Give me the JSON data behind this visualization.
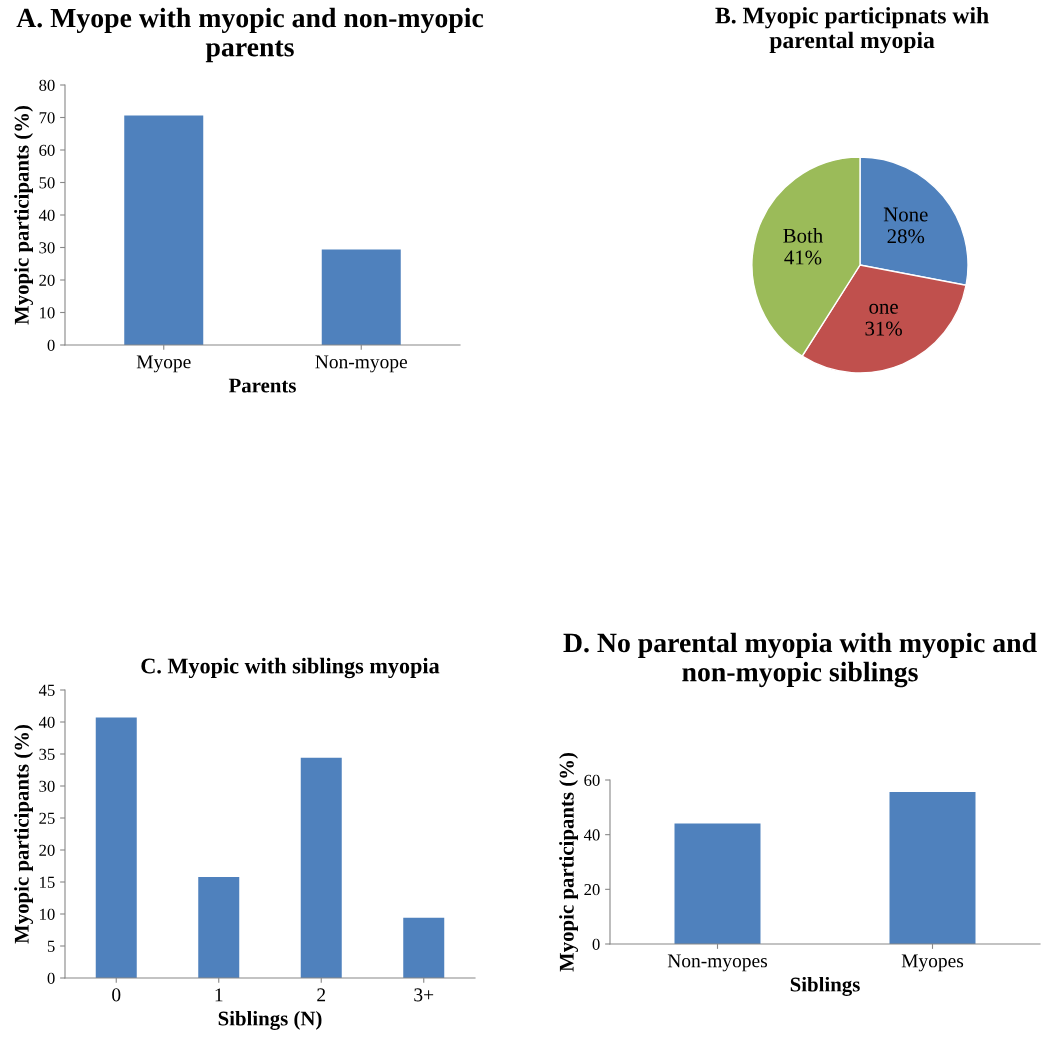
{
  "chart_data": [
    {
      "type": "bar",
      "title": "A. Myope with myopic and non-myopic parents",
      "xlabel": "Parents",
      "ylabel": "Myopic participants (%)",
      "categories": [
        "Myope",
        "Non-myope"
      ],
      "values": [
        70.6,
        29.4
      ],
      "color": "#4f81bd",
      "ylim": [
        0,
        80
      ],
      "yticks": [
        0,
        10,
        20,
        30,
        40,
        50,
        60,
        70,
        80
      ],
      "grid": false
    },
    {
      "type": "pie",
      "title": "B. Myopic participnats wih parental myopia",
      "categories": [
        "None",
        "one",
        "Both"
      ],
      "values": [
        28,
        31,
        41
      ],
      "value_labels": [
        "28%",
        "31%",
        "41%"
      ],
      "colors": [
        "#4f81bd",
        "#c0504d",
        "#9bbb59"
      ]
    },
    {
      "type": "bar",
      "title": "C. Myopic with siblings myopia",
      "xlabel": "Siblings (N)",
      "ylabel": "Myopic participants (%)",
      "categories": [
        "0",
        "1",
        "2",
        "3+"
      ],
      "values": [
        40.7,
        15.8,
        34.4,
        9.4
      ],
      "color": "#4f81bd",
      "ylim": [
        0,
        45
      ],
      "yticks": [
        0,
        5,
        10,
        15,
        20,
        25,
        30,
        35,
        40,
        45
      ],
      "grid": false
    },
    {
      "type": "bar",
      "title": "D. No parental myopia with myopic and non-myopic siblings",
      "xlabel": "Siblings",
      "ylabel": "Myopic participants (%)",
      "categories": [
        "Non-myopes",
        "Myopes"
      ],
      "values": [
        44.1,
        55.6
      ],
      "color": "#4f81bd",
      "ylim": [
        0,
        60
      ],
      "yticks": [
        0,
        20,
        40,
        60
      ],
      "grid": false
    }
  ]
}
